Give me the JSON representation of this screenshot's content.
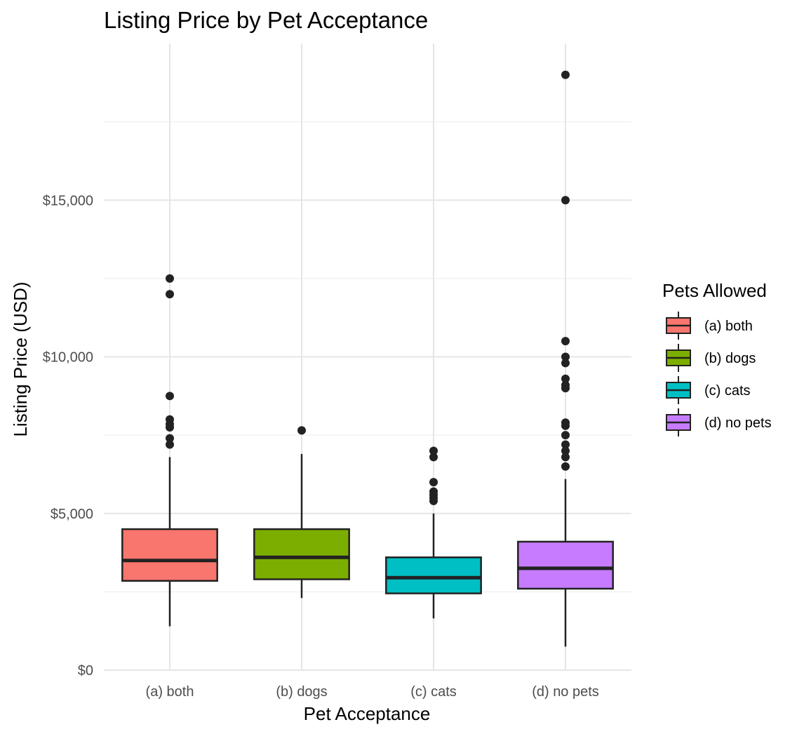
{
  "chart_data": {
    "type": "boxplot",
    "title": "Listing Price by Pet Acceptance",
    "xlabel": "Pet Acceptance",
    "ylabel": "Listing Price (USD)",
    "ylim": [
      0,
      20000
    ],
    "y_ticks": [
      0,
      5000,
      10000,
      15000
    ],
    "y_tick_labels": [
      "$0",
      "$5,000",
      "$10,000",
      "$15,000"
    ],
    "y_minor_ticks": [
      2500,
      7500,
      12500,
      17500
    ],
    "grid": true,
    "legend": {
      "title": "Pets Allowed",
      "position": "right"
    },
    "categories": [
      "(a) both",
      "(b) dogs",
      "(c) cats",
      "(d) no pets"
    ],
    "series": [
      {
        "name": "(a) both",
        "color": "#F8766D",
        "whisker_low": 1400,
        "q1": 2850,
        "median": 3500,
        "q3": 4500,
        "whisker_high": 6800,
        "outliers": [
          7200,
          7400,
          7750,
          7850,
          8000,
          8750,
          12000,
          12500
        ]
      },
      {
        "name": "(b) dogs",
        "color": "#7CAE00",
        "whisker_low": 2300,
        "q1": 2900,
        "median": 3600,
        "q3": 4500,
        "whisker_high": 6900,
        "outliers": [
          7650
        ]
      },
      {
        "name": "(c) cats",
        "color": "#00BFC4",
        "whisker_low": 1650,
        "q1": 2450,
        "median": 2950,
        "q3": 3600,
        "whisker_high": 5000,
        "outliers": [
          5400,
          5500,
          5600,
          5700,
          6000,
          6800,
          7000
        ]
      },
      {
        "name": "(d) no pets",
        "color": "#C77CFF",
        "whisker_low": 750,
        "q1": 2600,
        "median": 3250,
        "q3": 4100,
        "whisker_high": 6100,
        "outliers": [
          6500,
          6800,
          7000,
          7200,
          7500,
          7800,
          7900,
          9000,
          9100,
          9300,
          9800,
          10000,
          10500,
          15000,
          19000
        ]
      }
    ]
  }
}
